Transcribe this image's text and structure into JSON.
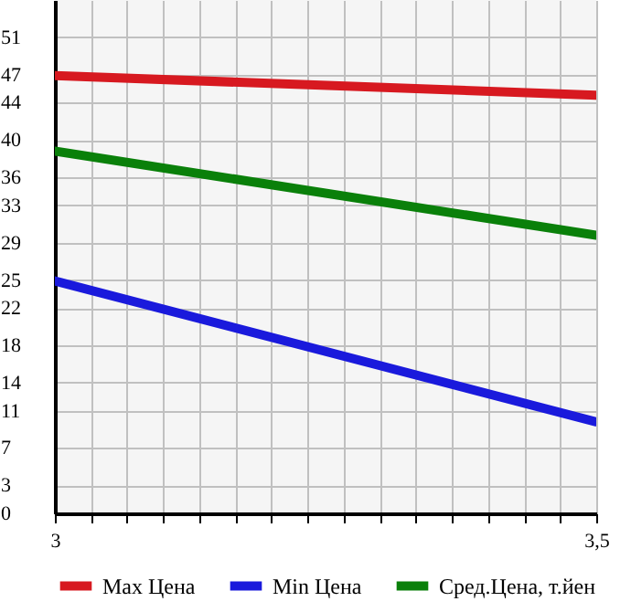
{
  "chart_data": {
    "type": "line",
    "x": [
      3,
      3.5
    ],
    "series": [
      {
        "name": "Max Цена",
        "color": "#d71920",
        "values": [
          46.9,
          44.8
        ]
      },
      {
        "name": "Min Цена",
        "color": "#1a1adc",
        "values": [
          24.9,
          9.8
        ]
      },
      {
        "name": "Сред.Цена, т.йен",
        "color": "#0a800a",
        "values": [
          38.8,
          29.8
        ]
      }
    ],
    "xlim": [
      3,
      3.5
    ],
    "xticks": [
      {
        "value": 3,
        "label": "3"
      },
      {
        "value": 3.0333,
        "label": null
      },
      {
        "value": 3.0667,
        "label": null
      },
      {
        "value": 3.1,
        "label": null
      },
      {
        "value": 3.1333,
        "label": null
      },
      {
        "value": 3.1667,
        "label": null
      },
      {
        "value": 3.2,
        "label": null
      },
      {
        "value": 3.2333,
        "label": null
      },
      {
        "value": 3.2667,
        "label": null
      },
      {
        "value": 3.3,
        "label": null
      },
      {
        "value": 3.3333,
        "label": null
      },
      {
        "value": 3.3667,
        "label": null
      },
      {
        "value": 3.4,
        "label": null
      },
      {
        "value": 3.4333,
        "label": null
      },
      {
        "value": 3.4667,
        "label": null
      },
      {
        "value": 3.5,
        "label": "3,5"
      }
    ],
    "ylim": [
      0,
      55
    ],
    "yticks": [
      0,
      3,
      7,
      11,
      14,
      18,
      22,
      25,
      29,
      33,
      36,
      40,
      44,
      47,
      51
    ],
    "grid": true,
    "legend": "bottom",
    "marker": "none",
    "line_style": "solid"
  }
}
